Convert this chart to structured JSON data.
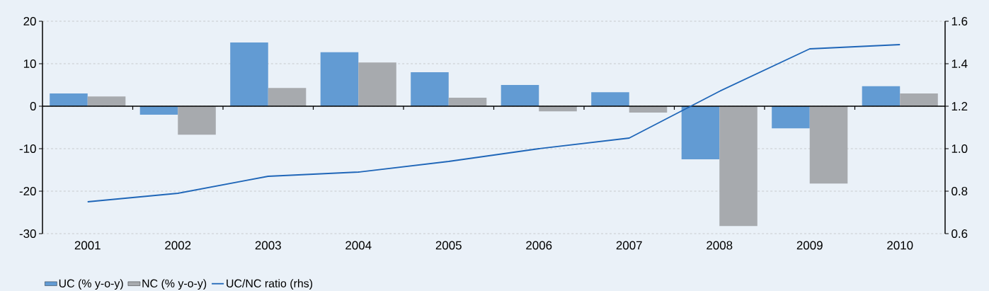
{
  "chart_data": {
    "type": "bar",
    "categories": [
      "2001",
      "2002",
      "2003",
      "2004",
      "2005",
      "2006",
      "2007",
      "2008",
      "2009",
      "2010"
    ],
    "series": [
      {
        "name": "UC (% y-o-y)",
        "color": "#629bd3",
        "values": [
          3.0,
          -2.0,
          15.0,
          12.7,
          8.0,
          5.0,
          3.3,
          -12.5,
          -5.2,
          4.7
        ]
      },
      {
        "name": "NC (% y-o-y)",
        "color": "#a7aaae",
        "values": [
          2.3,
          -6.7,
          4.3,
          10.3,
          2.0,
          -1.2,
          -1.5,
          -28.2,
          -18.2,
          3.0
        ]
      },
      {
        "name": "UC/NC ratio (rhs)",
        "type": "line",
        "axis": "y2",
        "color": "#1f66b8",
        "values": [
          0.75,
          0.79,
          0.87,
          0.89,
          0.94,
          1.0,
          1.05,
          1.27,
          1.47,
          1.49
        ]
      }
    ],
    "ylim": [
      -30,
      20
    ],
    "yticks": [
      -30,
      -20,
      -10,
      0,
      10,
      20
    ],
    "y2lim": [
      0.6,
      1.6
    ],
    "y2ticks": [
      0.6,
      0.8,
      {
        "value": 1.0,
        "label": "1.0"
      },
      1.2,
      1.4,
      1.6
    ],
    "grid": "y",
    "legend": "bottom left",
    "line_style": "solid"
  }
}
